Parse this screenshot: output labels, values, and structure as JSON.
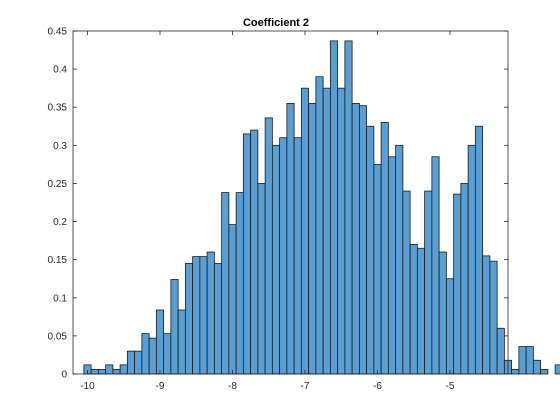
{
  "chart_data": {
    "type": "bar",
    "title": "Coefficient 2",
    "xlabel": "",
    "ylabel": "",
    "xlim": [
      -10.2,
      -4.2
    ],
    "ylim": [
      0,
      0.45
    ],
    "grid": false,
    "xticks": [
      -10,
      -9,
      -8,
      -7,
      -6,
      -5
    ],
    "xtick_labels": [
      "-10",
      "-9",
      "-8",
      "-7",
      "-6",
      "-5"
    ],
    "yticks": [
      0,
      0.05,
      0.1,
      0.15,
      0.2,
      0.25,
      0.3,
      0.35,
      0.4,
      0.45
    ],
    "ytick_labels": [
      "0",
      "0.05",
      "0.1",
      "0.15",
      "0.2",
      "0.25",
      "0.3",
      "0.35",
      "0.4",
      "0.45"
    ],
    "bin_start": -10.05,
    "bin_width": 0.1,
    "values": [
      0.012,
      0.006,
      0.006,
      0.012,
      0.006,
      0.012,
      0.03,
      0.03,
      0.053,
      0.047,
      0.084,
      0.053,
      0.124,
      0.084,
      0.145,
      0.154,
      0.154,
      0.16,
      0.145,
      0.238,
      0.196,
      0.238,
      0.315,
      0.32,
      0.25,
      0.336,
      0.3,
      0.31,
      0.355,
      0.31,
      0.375,
      0.355,
      0.39,
      0.375,
      0.437,
      0.375,
      0.437,
      0.355,
      0.352,
      0.325,
      0.275,
      0.33,
      0.285,
      0.3,
      0.24,
      0.17,
      0.165,
      0.24,
      0.285,
      0.16,
      0.125,
      0.236,
      0.25,
      0.3,
      0.325,
      0.155,
      0.148,
      0.06,
      0.018,
      0.006,
      0.036,
      0.036,
      0.018,
      0.006,
      0.0,
      0.012
    ],
    "bar_color": "#5a9fd4"
  }
}
